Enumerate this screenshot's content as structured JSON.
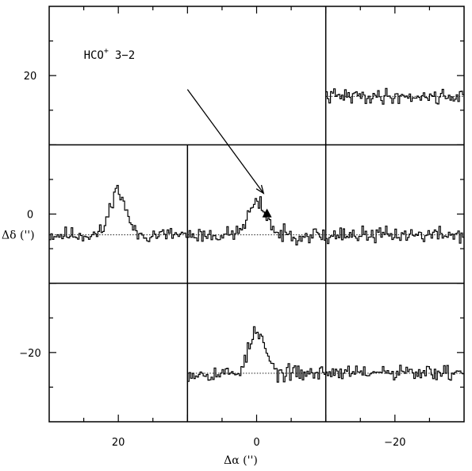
{
  "chart_data": {
    "type": "line",
    "title": "",
    "xlabel": "Δα ('')",
    "ylabel": "Δδ ('')",
    "xlim": [
      30,
      -30
    ],
    "ylim": [
      -30,
      30
    ],
    "x_ticks": [
      20,
      0,
      -20
    ],
    "x_tick_labels": [
      "20",
      "0",
      "−20"
    ],
    "y_ticks": [
      20,
      0,
      -20
    ],
    "y_tick_labels": [
      "20",
      "0",
      "−20"
    ],
    "grid_lines_x": [
      10,
      -10
    ],
    "grid_lines_y": [
      10,
      -10
    ],
    "panel_size": 20,
    "annotation": {
      "molecule": "HCO",
      "superscript": "+",
      "transition": "3−2",
      "position": [
        25,
        23
      ]
    },
    "arrow": {
      "from": [
        10,
        18
      ],
      "to": [
        -1,
        3
      ]
    },
    "marker": {
      "shape": "triangle",
      "position": [
        -1.5,
        0.1
      ]
    },
    "series": [
      {
        "panel": "east",
        "offset": [
          20,
          0
        ],
        "baseline": -3,
        "peak": {
          "position": 0.2,
          "height": 6.5,
          "width": 1.4
        },
        "noise": 0.7,
        "seed": 11
      },
      {
        "panel": "center",
        "offset": [
          0,
          0
        ],
        "baseline": -3,
        "peak": {
          "position": 0.1,
          "height": 4.3,
          "width": 1.7
        },
        "noise": 0.7,
        "seed": 23
      },
      {
        "panel": "west",
        "offset": [
          -20,
          0
        ],
        "baseline": -3,
        "peak": null,
        "noise": 0.7,
        "seed": 37
      },
      {
        "panel": "north-west",
        "offset": [
          -20,
          20
        ],
        "baseline": -3,
        "peak": null,
        "noise": 0.65,
        "seed": 41
      },
      {
        "panel": "south",
        "offset": [
          0,
          -20
        ],
        "baseline": -3,
        "peak": {
          "position": 0.1,
          "height": 5.8,
          "width": 1.5
        },
        "noise": 0.7,
        "seed": 53
      },
      {
        "panel": "south-west",
        "offset": [
          -20,
          -20
        ],
        "baseline": -3,
        "peak": null,
        "noise": 0.7,
        "seed": 61
      }
    ]
  }
}
